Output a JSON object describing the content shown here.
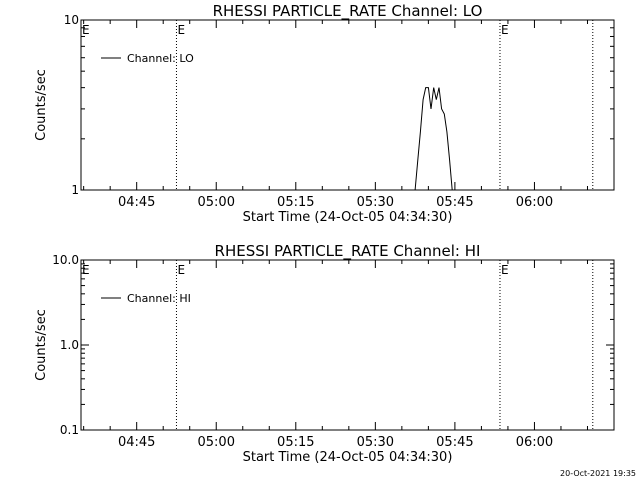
{
  "footer_timestamp": "20-Oct-2021 19:35",
  "colors": {
    "background": "#ffffff",
    "foreground": "#000000"
  },
  "chart_data": [
    {
      "type": "line",
      "title": "RHESSI PARTICLE_RATE Channel: LO",
      "xlabel": "Start Time (24-Oct-05 04:34:30)",
      "ylabel": "Counts/sec",
      "yscale": "log",
      "ylim": [
        1,
        10
      ],
      "ytick_labels": [
        "1",
        "10"
      ],
      "xlim": [
        "04:34:30",
        "06:15:00"
      ],
      "xtick_labels": [
        "04:45",
        "05:00",
        "05:15",
        "05:30",
        "05:45",
        "06:00"
      ],
      "legend": {
        "placement": "top-left",
        "entries": [
          "Channel: LO"
        ]
      },
      "grid": false,
      "markers": [
        {
          "time": "04:52:30",
          "label": "E"
        },
        {
          "time": "05:53:30",
          "label": "E"
        },
        {
          "time": "06:11:00",
          "label": ""
        }
      ],
      "series": [
        {
          "name": "Channel: LO",
          "x": [
            "05:37:30",
            "05:38:00",
            "05:38:30",
            "05:39:00",
            "05:39:30",
            "05:40:00",
            "05:40:30",
            "05:41:00",
            "05:41:30",
            "05:42:00",
            "05:42:30",
            "05:43:00",
            "05:43:30",
            "05:44:00",
            "05:44:30",
            "05:45:00",
            "05:45:30"
          ],
          "values": [
            0.9,
            1.5,
            2.2,
            3.4,
            4.0,
            4.0,
            3.0,
            4.0,
            3.4,
            4.0,
            3.0,
            2.8,
            2.2,
            1.5,
            1.0,
            0.9,
            0.9
          ]
        }
      ]
    },
    {
      "type": "line",
      "title": "RHESSI PARTICLE_RATE Channel: HI",
      "xlabel": "Start Time (24-Oct-05 04:34:30)",
      "ylabel": "Counts/sec",
      "yscale": "log",
      "ylim": [
        0.1,
        10
      ],
      "ytick_labels": [
        "0.1",
        "1.0",
        "10.0"
      ],
      "xlim": [
        "04:34:30",
        "06:15:00"
      ],
      "xtick_labels": [
        "04:45",
        "05:00",
        "05:15",
        "05:30",
        "05:45",
        "06:00"
      ],
      "legend": {
        "placement": "top-left",
        "entries": [
          "Channel: HI"
        ]
      },
      "grid": false,
      "markers": [
        {
          "time": "04:52:30",
          "label": "E"
        },
        {
          "time": "05:53:30",
          "label": "E"
        },
        {
          "time": "06:11:00",
          "label": ""
        }
      ],
      "series": [
        {
          "name": "Channel: HI",
          "x": [],
          "values": []
        }
      ]
    }
  ]
}
